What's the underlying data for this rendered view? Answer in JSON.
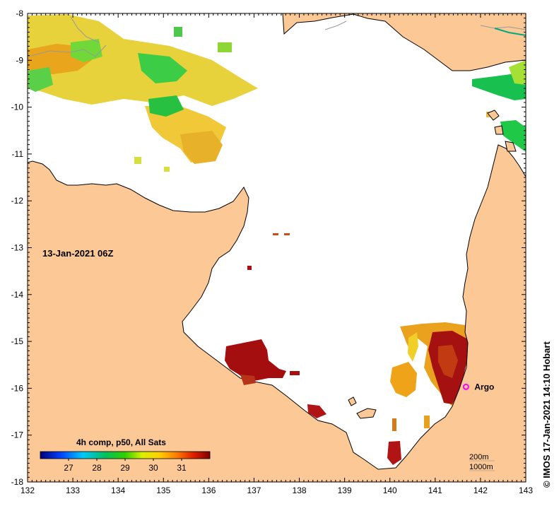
{
  "date_label": "13-Jan-2021 06Z",
  "credit": "© IMOS 17-Jan-2021 14:10 Hobart",
  "colorbar": {
    "title": "4h comp, p50, All Sats",
    "ticks": [
      "27",
      "28",
      "29",
      "30",
      "31"
    ],
    "range": [
      26.0,
      32.0
    ]
  },
  "argo": {
    "label": "Argo",
    "lon": 141.68,
    "lat": -15.97,
    "color": "#ff00ff"
  },
  "contours": {
    "line1": "200m",
    "line2": "1000m"
  },
  "axes": {
    "x_ticks": [
      "132",
      "133",
      "134",
      "135",
      "136",
      "137",
      "138",
      "139",
      "140",
      "141",
      "142",
      "143"
    ],
    "y_ticks": [
      "-8",
      "-9",
      "-10",
      "-11",
      "-12",
      "-13",
      "-14",
      "-15",
      "-16",
      "-17",
      "-18"
    ],
    "lon_range": [
      132,
      143
    ],
    "lat_range": [
      -18,
      -8
    ]
  },
  "colors": {
    "land": "#fcc896",
    "water": "#ffffff",
    "hot": "#a50f0f",
    "warm": "#e8a01e",
    "mid": "#d2e628",
    "cool": "#18c23c"
  }
}
